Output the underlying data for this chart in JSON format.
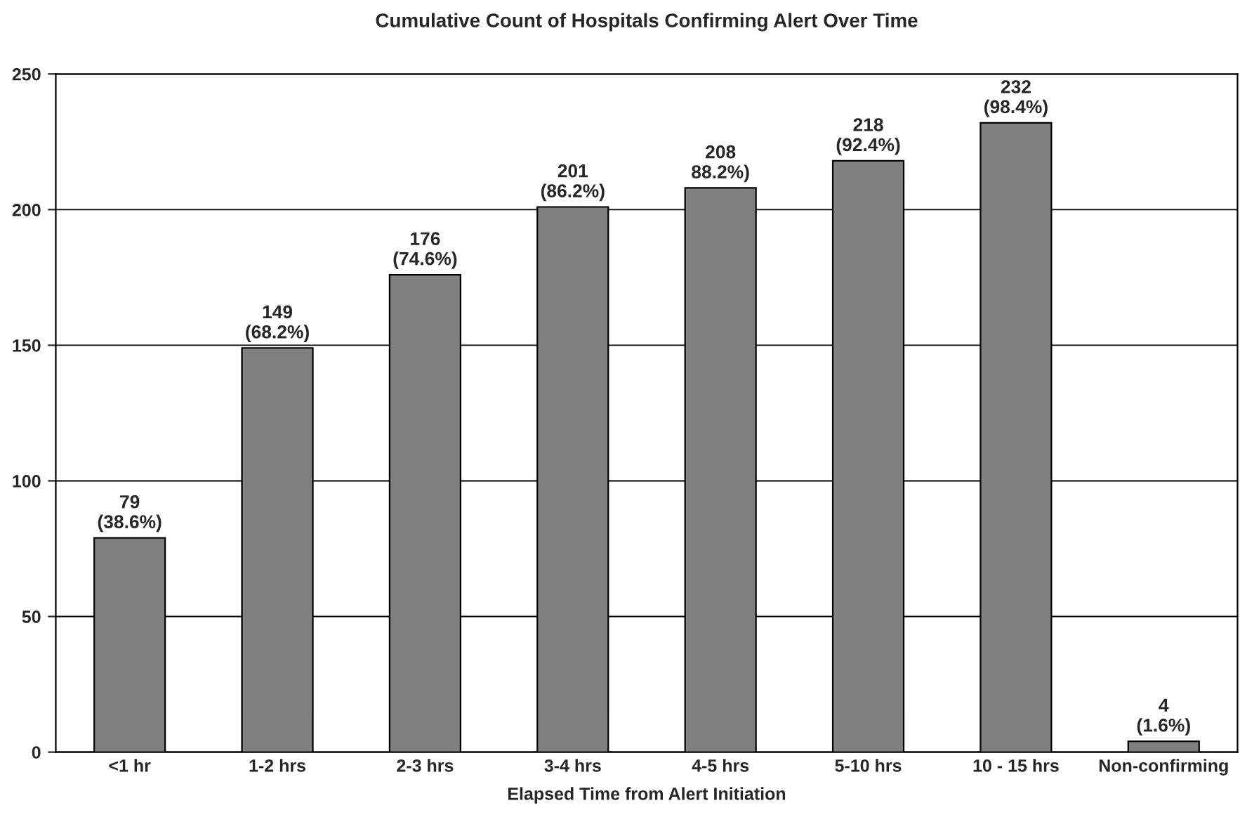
{
  "chart_data": {
    "type": "bar",
    "title": "Cumulative Count of Hospitals Confirming Alert Over Time",
    "xlabel": "Elapsed Time from Alert Initiation",
    "categories": [
      "<1 hr",
      "1-2 hrs",
      "2-3 hrs",
      "3-4 hrs",
      "4-5 hrs",
      "5-10 hrs",
      "10 - 15 hrs",
      "Non-confirming"
    ],
    "values": [
      79,
      149,
      176,
      201,
      208,
      218,
      232,
      4
    ],
    "color": "#808080",
    "value_labels": [
      "79\n(38.6%)",
      "149\n(68.2%)",
      "176\n(74.6%)",
      "201\n(86.2%)",
      "208\n88.2%)",
      "218\n(92.4%)",
      "232\n(98.4%)",
      "4\n(1.6%)"
    ],
    "ylim": [
      0,
      250
    ],
    "yticks": [
      0,
      50,
      100,
      150,
      200,
      250
    ],
    "grid": "y"
  }
}
